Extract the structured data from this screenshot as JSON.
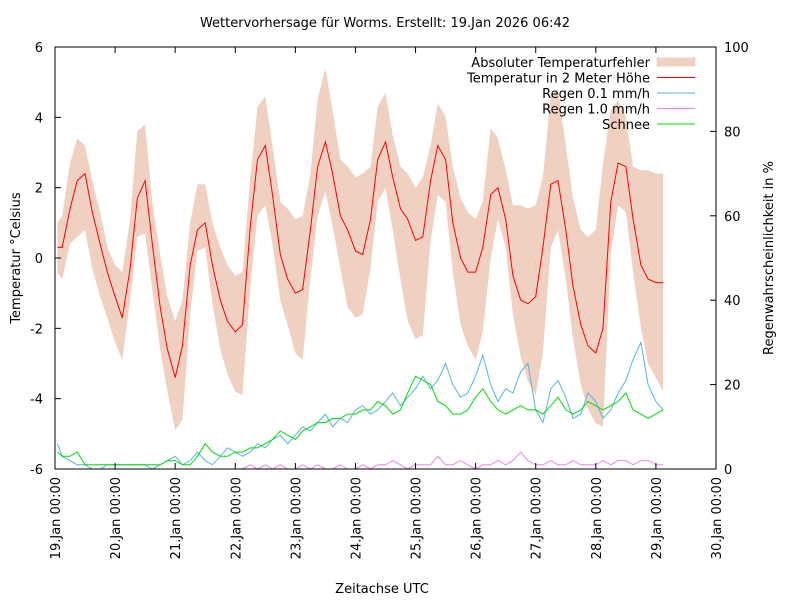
{
  "chart_data": {
    "type": "line",
    "title": "Wettervorhersage für Worms. Erstellt: 19.Jan 2026 06:42",
    "xlabel": "Zeitachse UTC",
    "ylabel": "Temperatur °Celsius",
    "y2label": "Regenwahrscheinlichkeit in %",
    "xlim_days": [
      0,
      11
    ],
    "x_tick_labels": [
      "19.Jan 00:00",
      "20.Jan 00:00",
      "21.Jan 00:00",
      "22.Jan 00:00",
      "23.Jan 00:00",
      "24.Jan 00:00",
      "25.Jan 00:00",
      "26.Jan 00:00",
      "27.Jan 00:00",
      "28.Jan 00:00",
      "29.Jan 00:00",
      "30.Jan 00:00"
    ],
    "ylim": [
      -6,
      6
    ],
    "y_ticks": [
      -6,
      -4,
      -2,
      0,
      2,
      4,
      6
    ],
    "y2lim": [
      0,
      100
    ],
    "y2_ticks": [
      0,
      20,
      40,
      60,
      80,
      100
    ],
    "grid": false,
    "legend_position": "top-right",
    "x_unit": "days since 19.Jan 00:00",
    "x": [
      0.04,
      0.12,
      0.25,
      0.37,
      0.5,
      0.62,
      0.75,
      0.87,
      1.0,
      1.12,
      1.25,
      1.37,
      1.5,
      1.62,
      1.75,
      1.87,
      2.0,
      2.12,
      2.25,
      2.37,
      2.5,
      2.62,
      2.75,
      2.87,
      3.0,
      3.12,
      3.25,
      3.37,
      3.5,
      3.62,
      3.75,
      3.87,
      4.0,
      4.12,
      4.25,
      4.37,
      4.5,
      4.62,
      4.75,
      4.87,
      5.0,
      5.12,
      5.25,
      5.37,
      5.5,
      5.62,
      5.75,
      5.87,
      6.0,
      6.12,
      6.25,
      6.37,
      6.5,
      6.62,
      6.75,
      6.87,
      7.0,
      7.12,
      7.25,
      7.37,
      7.5,
      7.62,
      7.75,
      7.87,
      8.0,
      8.12,
      8.25,
      8.37,
      8.5,
      8.62,
      8.75,
      8.87,
      9.0,
      9.12,
      9.25,
      9.37,
      9.5,
      9.62,
      9.75,
      9.87,
      10.0,
      10.12
    ],
    "series": [
      {
        "name": "Temperatur in 2 Meter Höhe",
        "axis": "y",
        "color": "#ff0000",
        "values": [
          0.3,
          0.3,
          1.4,
          2.2,
          2.4,
          1.3,
          0.4,
          -0.4,
          -1.1,
          -1.7,
          -0.3,
          1.7,
          2.2,
          0.4,
          -1.4,
          -2.6,
          -3.4,
          -2.5,
          -0.2,
          0.8,
          1.0,
          -0.2,
          -1.2,
          -1.8,
          -2.1,
          -1.9,
          0.9,
          2.8,
          3.2,
          1.8,
          0.1,
          -0.6,
          -1.0,
          -0.9,
          0.8,
          2.6,
          3.3,
          2.4,
          1.2,
          0.8,
          0.2,
          0.1,
          1.1,
          2.8,
          3.3,
          2.3,
          1.4,
          1.1,
          0.5,
          0.6,
          2.2,
          3.2,
          2.8,
          1.0,
          0.0,
          -0.4,
          -0.4,
          0.3,
          1.8,
          2.0,
          1.1,
          -0.5,
          -1.2,
          -1.3,
          -1.1,
          0.3,
          2.1,
          2.2,
          0.8,
          -0.8,
          -1.9,
          -2.5,
          -2.7,
          -2.0,
          1.6,
          2.7,
          2.6,
          1.1,
          -0.2,
          -0.6,
          -0.7,
          -0.7
        ]
      },
      {
        "name": "Absoluter Temperaturfehler",
        "axis": "y",
        "type": "band",
        "color": "#f0d0c0",
        "lower": [
          -0.4,
          -0.6,
          0.4,
          0.6,
          0.8,
          -0.3,
          -1.1,
          -1.7,
          -2.4,
          -2.9,
          -1.2,
          0.6,
          0.7,
          -0.9,
          -2.6,
          -3.8,
          -4.9,
          -4.6,
          -1.6,
          0.2,
          0.3,
          -1.3,
          -2.6,
          -3.3,
          -3.8,
          -3.9,
          -0.8,
          1.2,
          1.5,
          0.4,
          -1.2,
          -1.9,
          -2.7,
          -2.9,
          -0.6,
          1.2,
          1.9,
          0.9,
          -0.3,
          -1.4,
          -1.7,
          -1.6,
          -0.3,
          1.6,
          2.0,
          0.8,
          -0.6,
          -1.8,
          -2.3,
          -2.2,
          0.5,
          1.8,
          1.6,
          -0.4,
          -1.9,
          -2.5,
          -2.9,
          -2.1,
          0.0,
          1.1,
          0.3,
          -1.6,
          -2.8,
          -3.5,
          -3.9,
          -2.7,
          0.3,
          0.8,
          -0.6,
          -2.3,
          -3.6,
          -4.3,
          -4.7,
          -4.8,
          0.1,
          1.5,
          1.3,
          -0.4,
          -2.0,
          -3.0,
          -3.4,
          -3.8
        ],
        "upper": [
          1.0,
          1.2,
          2.7,
          3.4,
          3.2,
          2.2,
          1.3,
          0.3,
          -0.2,
          -0.4,
          1.1,
          3.6,
          3.8,
          1.6,
          0.1,
          -1.1,
          -1.8,
          -1.2,
          1.0,
          2.1,
          2.1,
          1.0,
          0.3,
          -0.2,
          -0.5,
          -0.4,
          2.3,
          4.3,
          4.6,
          3.2,
          1.6,
          1.4,
          1.1,
          1.2,
          2.4,
          4.5,
          5.4,
          4.2,
          2.8,
          2.6,
          2.3,
          2.4,
          2.6,
          4.3,
          4.7,
          3.5,
          2.6,
          2.4,
          2.0,
          2.3,
          3.2,
          4.4,
          4.0,
          2.6,
          1.7,
          1.3,
          1.1,
          1.6,
          3.7,
          3.4,
          2.5,
          1.5,
          1.5,
          1.4,
          1.5,
          2.3,
          4.6,
          4.8,
          3.2,
          1.7,
          0.8,
          0.6,
          0.8,
          2.7,
          4.2,
          4.5,
          4.0,
          2.6,
          2.5,
          2.5,
          2.4,
          2.4
        ]
      },
      {
        "name": "Regen 0.1 mm/h",
        "axis": "y2",
        "color": "#56b4e9",
        "values": [
          6,
          3,
          2,
          1,
          1,
          0,
          0,
          1,
          1,
          1,
          1,
          1,
          1,
          0,
          1,
          2,
          3,
          1,
          2,
          4,
          2,
          1,
          3,
          5,
          4,
          3,
          4,
          6,
          5,
          7,
          8,
          6,
          8,
          10,
          9,
          11,
          13,
          10,
          12,
          11,
          14,
          15,
          13,
          14,
          16,
          18,
          15,
          17,
          19,
          22,
          19,
          21,
          25,
          20,
          17,
          18,
          22,
          27,
          20,
          16,
          19,
          18,
          23,
          25,
          14,
          11,
          19,
          21,
          17,
          12,
          13,
          18,
          16,
          12,
          14,
          18,
          21,
          26,
          30,
          20,
          16,
          14
        ]
      },
      {
        "name": "Regen 1.0 mm/h",
        "axis": "y2",
        "color": "#ee82ee",
        "values": [
          0,
          0,
          0,
          0,
          0,
          0,
          0,
          0,
          0,
          0,
          0,
          0,
          0,
          0,
          0,
          0,
          0,
          0,
          0,
          0,
          0,
          0,
          0,
          0,
          0,
          0,
          1,
          0,
          1,
          0,
          1,
          0,
          0,
          1,
          0,
          1,
          0,
          0,
          1,
          0,
          0,
          1,
          0,
          1,
          1,
          2,
          1,
          0,
          1,
          1,
          1,
          3,
          1,
          1,
          2,
          1,
          0,
          1,
          1,
          2,
          1,
          2,
          4,
          2,
          1,
          1,
          2,
          1,
          1,
          2,
          1,
          1,
          1,
          2,
          1,
          2,
          2,
          1,
          2,
          2,
          1,
          1
        ]
      },
      {
        "name": "Schnee",
        "axis": "y2",
        "color": "#00dd00",
        "values": [
          4,
          3,
          3,
          4,
          1,
          1,
          1,
          1,
          1,
          1,
          1,
          1,
          1,
          1,
          1,
          2,
          2,
          1,
          1,
          3,
          6,
          4,
          3,
          3,
          4,
          4,
          5,
          5,
          6,
          7,
          9,
          8,
          7,
          9,
          10,
          11,
          11,
          12,
          12,
          13,
          13,
          14,
          14,
          16,
          15,
          13,
          14,
          18,
          22,
          21,
          20,
          16,
          15,
          13,
          13,
          14,
          17,
          19,
          16,
          14,
          13,
          14,
          15,
          14,
          14,
          13,
          15,
          17,
          14,
          13,
          14,
          16,
          15,
          14,
          15,
          16,
          18,
          14,
          13,
          12,
          13,
          14
        ]
      }
    ]
  }
}
